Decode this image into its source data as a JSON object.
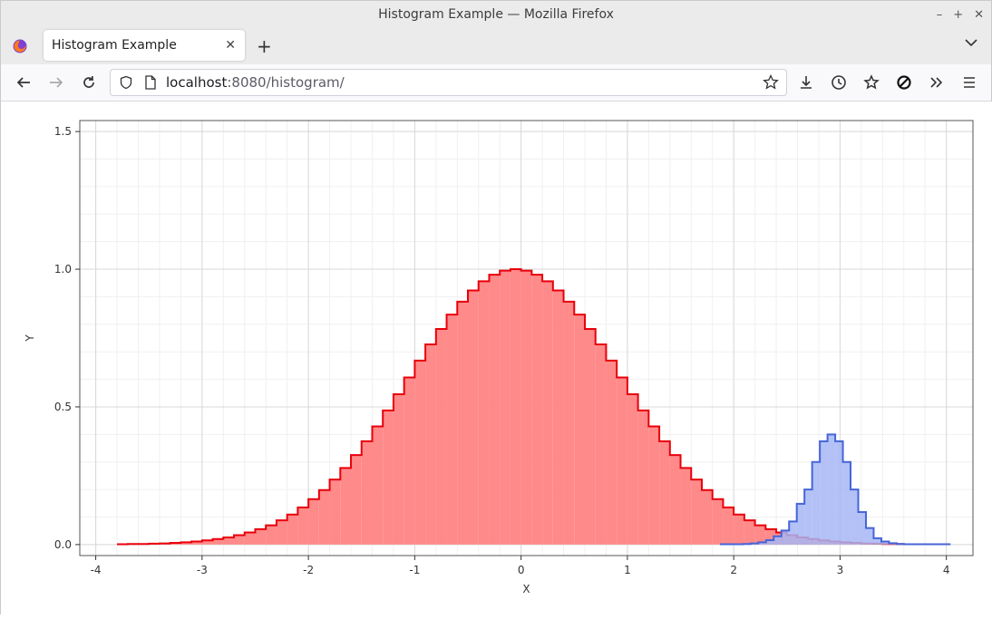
{
  "window": {
    "title": "Histogram Example — Mozilla Firefox"
  },
  "tab": {
    "title": "Histogram Example"
  },
  "urlbar": {
    "host": "localhost",
    "path": ":8080/histogram/"
  },
  "colors": {
    "red_fill": "#ff8a8a",
    "red_line": "#e8000b",
    "blue_fill": "#a6b6f5",
    "blue_line": "#4565d8"
  },
  "chart_data": {
    "type": "area",
    "xlabel": "X",
    "ylabel": "Y",
    "xlim": [
      -4.15,
      4.25
    ],
    "ylim": [
      -0.04,
      1.54
    ],
    "xticks": [
      -4,
      -3,
      -2,
      -1,
      0,
      1,
      2,
      3,
      4
    ],
    "yticks": [
      0.0,
      0.5,
      1.0,
      1.5
    ],
    "ytick_labels": [
      "0.0",
      "0.5",
      "1.0",
      "1.5"
    ],
    "grid": true,
    "series": [
      {
        "color": "red",
        "bin_start": -3.8,
        "bin_width": 0.1,
        "values": [
          0.001,
          0.002,
          0.002,
          0.003,
          0.004,
          0.006,
          0.008,
          0.011,
          0.015,
          0.02,
          0.026,
          0.034,
          0.044,
          0.056,
          0.07,
          0.088,
          0.109,
          0.135,
          0.165,
          0.198,
          0.236,
          0.278,
          0.325,
          0.375,
          0.429,
          0.487,
          0.546,
          0.607,
          0.668,
          0.727,
          0.783,
          0.835,
          0.882,
          0.923,
          0.956,
          0.98,
          0.995,
          1.0,
          0.995,
          0.98,
          0.956,
          0.923,
          0.882,
          0.835,
          0.783,
          0.727,
          0.668,
          0.607,
          0.546,
          0.487,
          0.429,
          0.375,
          0.325,
          0.278,
          0.236,
          0.198,
          0.165,
          0.135,
          0.109,
          0.088,
          0.07,
          0.056,
          0.044,
          0.034,
          0.026,
          0.02,
          0.015,
          0.011,
          0.008,
          0.006,
          0.004,
          0.003,
          0.002,
          0.002
        ]
      },
      {
        "color": "blue",
        "bin_start": 1.87,
        "bin_width": 0.0723,
        "values": [
          0.001,
          0.001,
          0.001,
          0.002,
          0.004,
          0.008,
          0.016,
          0.03,
          0.051,
          0.084,
          0.148,
          0.2,
          0.3,
          0.375,
          0.4,
          0.375,
          0.3,
          0.2,
          0.118,
          0.06,
          0.023,
          0.011,
          0.005,
          0.002,
          0.001,
          0.001,
          0.001,
          0.001,
          0.001,
          0.001
        ]
      }
    ]
  }
}
